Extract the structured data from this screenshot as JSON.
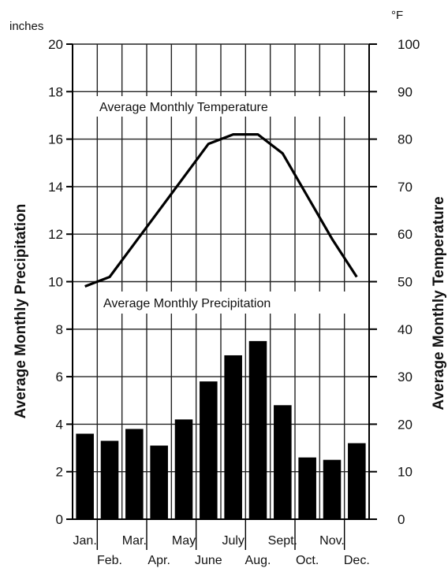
{
  "chart_data": {
    "type": "bar+line",
    "categories": [
      "Jan.",
      "Feb.",
      "Mar.",
      "Apr.",
      "May",
      "June",
      "July",
      "Aug.",
      "Sept.",
      "Oct.",
      "Nov.",
      "Dec."
    ],
    "series": [
      {
        "name": "Average Monthly Precipitation",
        "type": "bar",
        "axis": "left",
        "values": [
          3.6,
          3.3,
          3.8,
          3.1,
          4.2,
          5.8,
          6.9,
          7.5,
          4.8,
          2.6,
          2.5,
          3.2
        ]
      },
      {
        "name": "Average Monthly Temperature",
        "type": "line",
        "axis": "right",
        "values": [
          49,
          51,
          58,
          65,
          72,
          79,
          81,
          81,
          77,
          68,
          59,
          51
        ]
      }
    ],
    "left_axis": {
      "label": "Average Monthly Precipitation",
      "unit": "inches",
      "range": [
        0,
        20
      ],
      "ticks": [
        0,
        2,
        4,
        6,
        8,
        10,
        12,
        14,
        16,
        18,
        20
      ]
    },
    "right_axis": {
      "label": "Average Monthly Temperature",
      "unit": "°F",
      "range": [
        0,
        100
      ],
      "ticks": [
        0,
        10,
        20,
        30,
        40,
        50,
        60,
        70,
        80,
        90,
        100
      ]
    },
    "grid": true,
    "colors": {
      "bars": "#000000",
      "line": "#000000",
      "grid": "#222222"
    }
  }
}
